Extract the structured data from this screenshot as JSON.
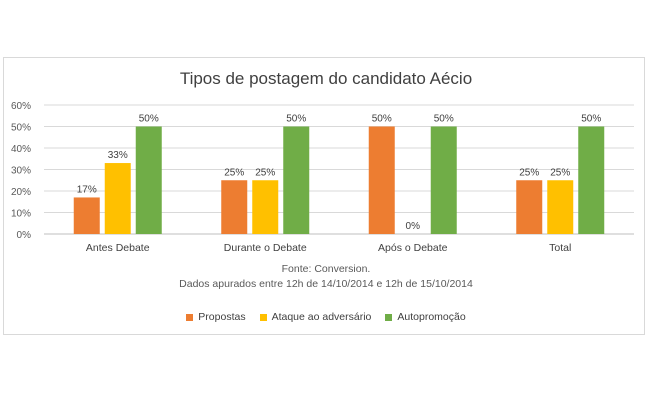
{
  "chart_data": {
    "type": "bar",
    "title": "Tipos de postagem do candidato Aécio",
    "categories": [
      "Antes Debate",
      "Durante o Debate",
      "Após o Debate",
      "Total"
    ],
    "series": [
      {
        "name": "Propostas",
        "color": "#ed7d31",
        "values": [
          17,
          25,
          50,
          25
        ]
      },
      {
        "name": "Ataque ao adversário",
        "color": "#ffc000",
        "values": [
          33,
          25,
          0,
          25
        ]
      },
      {
        "name": "Autopromoção",
        "color": "#70ad47",
        "values": [
          50,
          50,
          50,
          50
        ]
      }
    ],
    "ylim": [
      0,
      60
    ],
    "yticks": [
      "0%",
      "10%",
      "20%",
      "30%",
      "40%",
      "50%",
      "60%"
    ],
    "grid": true,
    "legend": "bottom",
    "source": "Fonte:  Conversion.",
    "note": "Dados apurados entre 12h de 14/10/2014 e 12h de 15/10/2014"
  }
}
